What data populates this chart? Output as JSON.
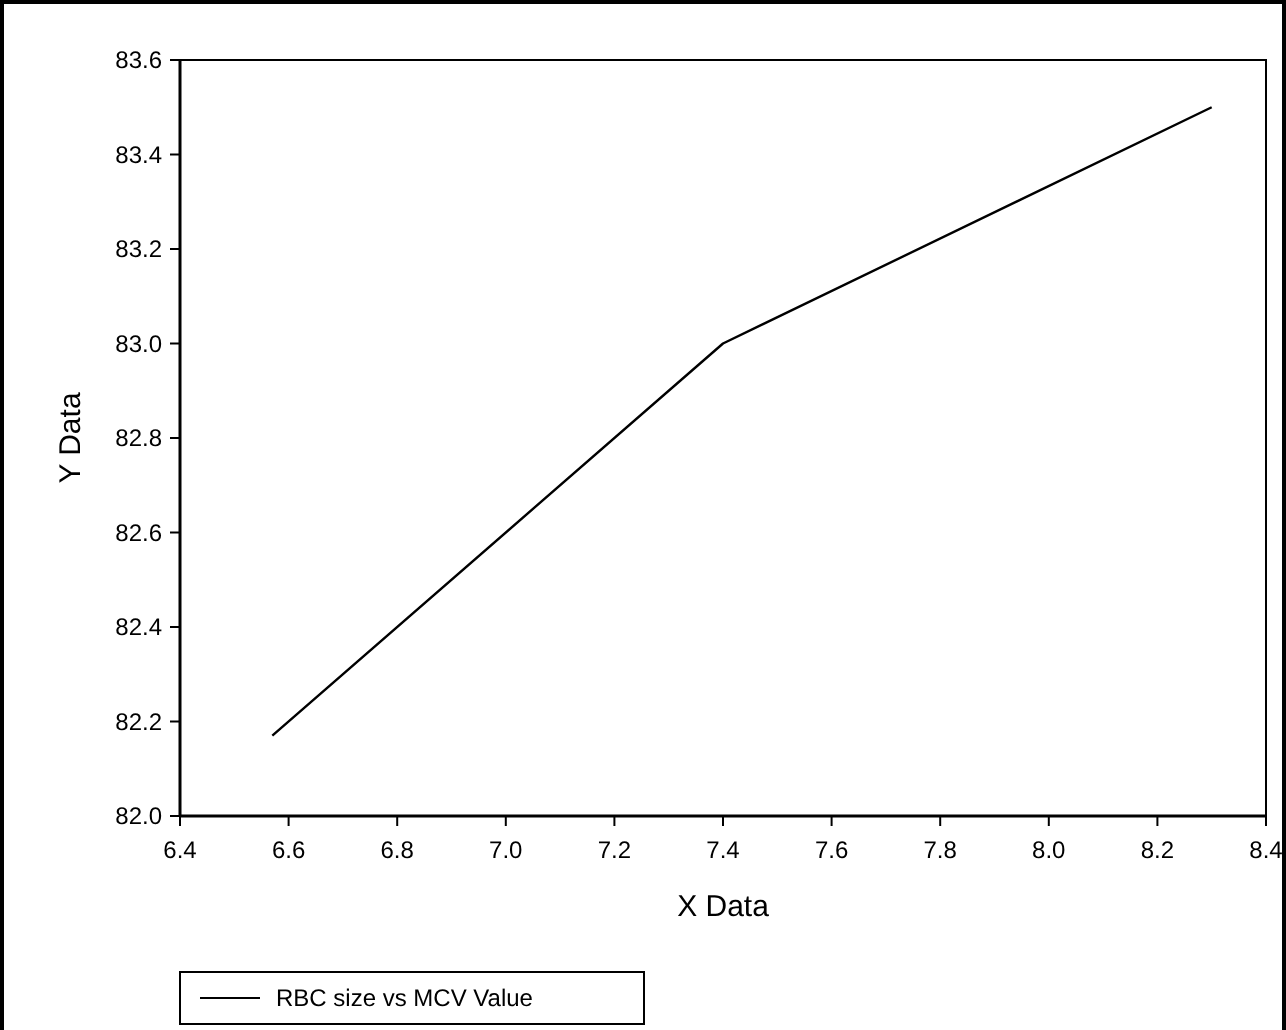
{
  "chart_data": {
    "type": "line",
    "xlabel": "X Data",
    "ylabel": "Y Data",
    "x": [
      6.57,
      7.4,
      8.3
    ],
    "series": [
      {
        "name": "RBC size vs MCV Value",
        "color": "#000000",
        "values": [
          82.17,
          83.0,
          83.5
        ]
      }
    ],
    "xlim": [
      6.4,
      8.4
    ],
    "xticks": [
      6.4,
      6.6,
      6.8,
      {
        "value": 7.0,
        "label": "7.0"
      },
      7.2,
      7.4,
      7.6,
      7.8,
      {
        "value": 8.0,
        "label": "8.0"
      },
      8.2,
      8.4
    ],
    "ylim": [
      82.0,
      83.6
    ],
    "yticks": [
      {
        "value": 82.0,
        "label": "82.0"
      },
      82.2,
      82.4,
      82.6,
      82.8,
      {
        "value": 83.0,
        "label": "83.0"
      },
      83.2,
      83.4,
      83.6
    ],
    "grid": false,
    "legend": "bottom",
    "marker": "none",
    "line_style": "solid"
  }
}
